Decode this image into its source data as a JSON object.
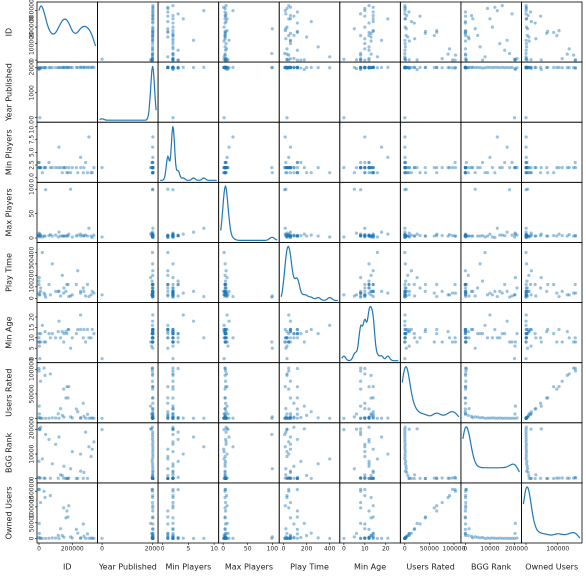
{
  "chart_data": {
    "type": "scatter_matrix",
    "color": "#1f77b4",
    "variables": [
      {
        "name": "ID",
        "lim": [
          0,
          340000
        ],
        "yticks": [
          0,
          100000,
          200000,
          300000
        ],
        "xticks": [
          0,
          200000
        ],
        "values": [
          174430,
          161936,
          224517,
          167791,
          233078,
          291457,
          115746,
          13,
          822,
          30549,
          9209,
          68448,
          178900,
          36218,
          148228,
          129622,
          1406,
          2223,
          5,
          266192,
          250458,
          313010,
          330000,
          320000,
          280000,
          200000,
          150000,
          100000,
          60000,
          40000,
          20000,
          5000,
          250000,
          190000,
          120000,
          80000,
          270000,
          300000,
          140000,
          10000
        ]
      },
      {
        "name": "Year Published",
        "lim": [
          -100,
          2150
        ],
        "yticks": [
          0,
          1000,
          2000
        ],
        "xticks": [
          0,
          2000
        ],
        "values": [
          2017,
          2015,
          2018,
          2016,
          2017,
          2020,
          2012,
          1995,
          2000,
          2008,
          2004,
          2010,
          2015,
          2008,
          2014,
          2012,
          1933,
          1971,
          1992,
          2019,
          2018,
          2020,
          2021,
          2021,
          2019,
          2016,
          2014,
          2011,
          2009,
          2009,
          2005,
          0,
          2018,
          2016,
          2012,
          2010,
          2019,
          2020,
          2013,
          2004
        ]
      },
      {
        "name": "Min Players",
        "lim": [
          -0.5,
          10.5
        ],
        "yticks": [
          {
            "value": 0,
            "label": "0.0"
          },
          {
            "value": 2.5,
            "label": "2.5"
          },
          {
            "value": 5,
            "label": "5.0"
          },
          {
            "value": 7.5,
            "label": "7.5"
          },
          {
            "value": 10,
            "label": "10.0"
          }
        ],
        "xticks": [
          0,
          5,
          10
        ],
        "values": [
          1,
          2,
          2,
          1,
          1,
          1,
          2,
          3,
          2,
          2,
          2,
          2,
          2,
          2,
          2,
          2,
          2,
          2,
          3,
          1,
          2,
          1,
          2,
          1,
          3,
          2,
          2,
          2,
          3,
          2,
          1,
          2,
          4,
          1,
          6,
          2,
          2,
          8,
          1,
          2
        ]
      },
      {
        "name": "Max Players",
        "lim": [
          -5,
          110
        ],
        "yticks": [
          0,
          50,
          100
        ],
        "xticks": [
          0,
          50,
          100
        ],
        "values": [
          4,
          4,
          4,
          5,
          6,
          4,
          2,
          4,
          5,
          4,
          5,
          7,
          8,
          4,
          4,
          4,
          8,
          10,
          5,
          5,
          4,
          4,
          6,
          1,
          6,
          2,
          4,
          6,
          5,
          99,
          2,
          2,
          8,
          100,
          12,
          4,
          4,
          20,
          4,
          6
        ]
      },
      {
        "name": "Play Time",
        "lim": [
          -20,
          470
        ],
        "yticks": [
          0,
          100,
          200,
          300,
          400
        ],
        "xticks": [
          0,
          200,
          400
        ],
        "values": [
          120,
          60,
          120,
          120,
          240,
          120,
          60,
          120,
          45,
          45,
          60,
          30,
          15,
          30,
          45,
          20,
          180,
          30,
          150,
          90,
          60,
          30,
          45,
          60,
          20,
          30,
          90,
          60,
          120,
          10,
          400,
          30,
          45,
          20,
          60,
          300,
          60,
          15,
          200,
          90
        ]
      },
      {
        "name": "Min Age",
        "lim": [
          -1,
          26
        ],
        "yticks": [
          0,
          5,
          10,
          15,
          20
        ],
        "xticks": [
          0,
          10,
          20
        ],
        "values": [
          14,
          13,
          12,
          12,
          14,
          14,
          13,
          10,
          8,
          8,
          8,
          10,
          14,
          13,
          8,
          10,
          8,
          6,
          12,
          10,
          14,
          10,
          12,
          14,
          8,
          10,
          12,
          10,
          12,
          8,
          16,
          0,
          21,
          5,
          18,
          12,
          14,
          10,
          13,
          12
        ]
      },
      {
        "name": "Users Rated",
        "lim": [
          -5000,
          110000
        ],
        "yticks": [
          0,
          50000,
          100000
        ],
        "xticks": [
          0,
          50000,
          100000
        ],
        "values": [
          42055,
          41643,
          19217,
          64864,
          13468,
          8392,
          9360,
          102214,
          97000,
          103000,
          76000,
          91000,
          65000,
          88000,
          60000,
          20000,
          25000,
          9000,
          1800,
          31000,
          1200,
          600,
          200,
          400,
          150,
          900,
          2500,
          700,
          300,
          100,
          80,
          60,
          500,
          3000,
          150,
          1100,
          4000,
          250,
          6000,
          700
        ]
      },
      {
        "name": "BGG Rank",
        "lim": [
          -1000,
          22000
        ],
        "yticks": [
          0,
          10000,
          20000
        ],
        "xticks": [
          0,
          10000,
          20000
        ],
        "values": [
          1,
          2,
          3,
          4,
          5,
          6,
          80,
          429,
          200,
          110,
          180,
          90,
          150,
          70,
          120,
          1500,
          20344,
          20200,
          7000,
          50,
          3000,
          9000,
          15000,
          12000,
          19000,
          11000,
          5000,
          14000,
          16000,
          18000,
          8000,
          20000,
          10000,
          4000,
          17000,
          6000,
          2500,
          13000,
          1200,
          21000
        ]
      },
      {
        "name": "Owned Users",
        "lim": [
          -8000,
          170000
        ],
        "yticks": [
          0,
          50000,
          100000,
          150000
        ],
        "xticks": [
          0,
          100000
        ],
        "values": [
          68323,
          65294,
          28785,
          87099,
          16831,
          14500,
          9800,
          155000,
          156000,
          150000,
          114000,
          136000,
          104000,
          130000,
          97000,
          31000,
          48000,
          16000,
          3000,
          46000,
          2000,
          1100,
          400,
          700,
          300,
          1500,
          4000,
          1300,
          600,
          250,
          200,
          150,
          900,
          5000,
          300,
          2000,
          7000,
          500,
          9000,
          1200
        ]
      }
    ]
  }
}
